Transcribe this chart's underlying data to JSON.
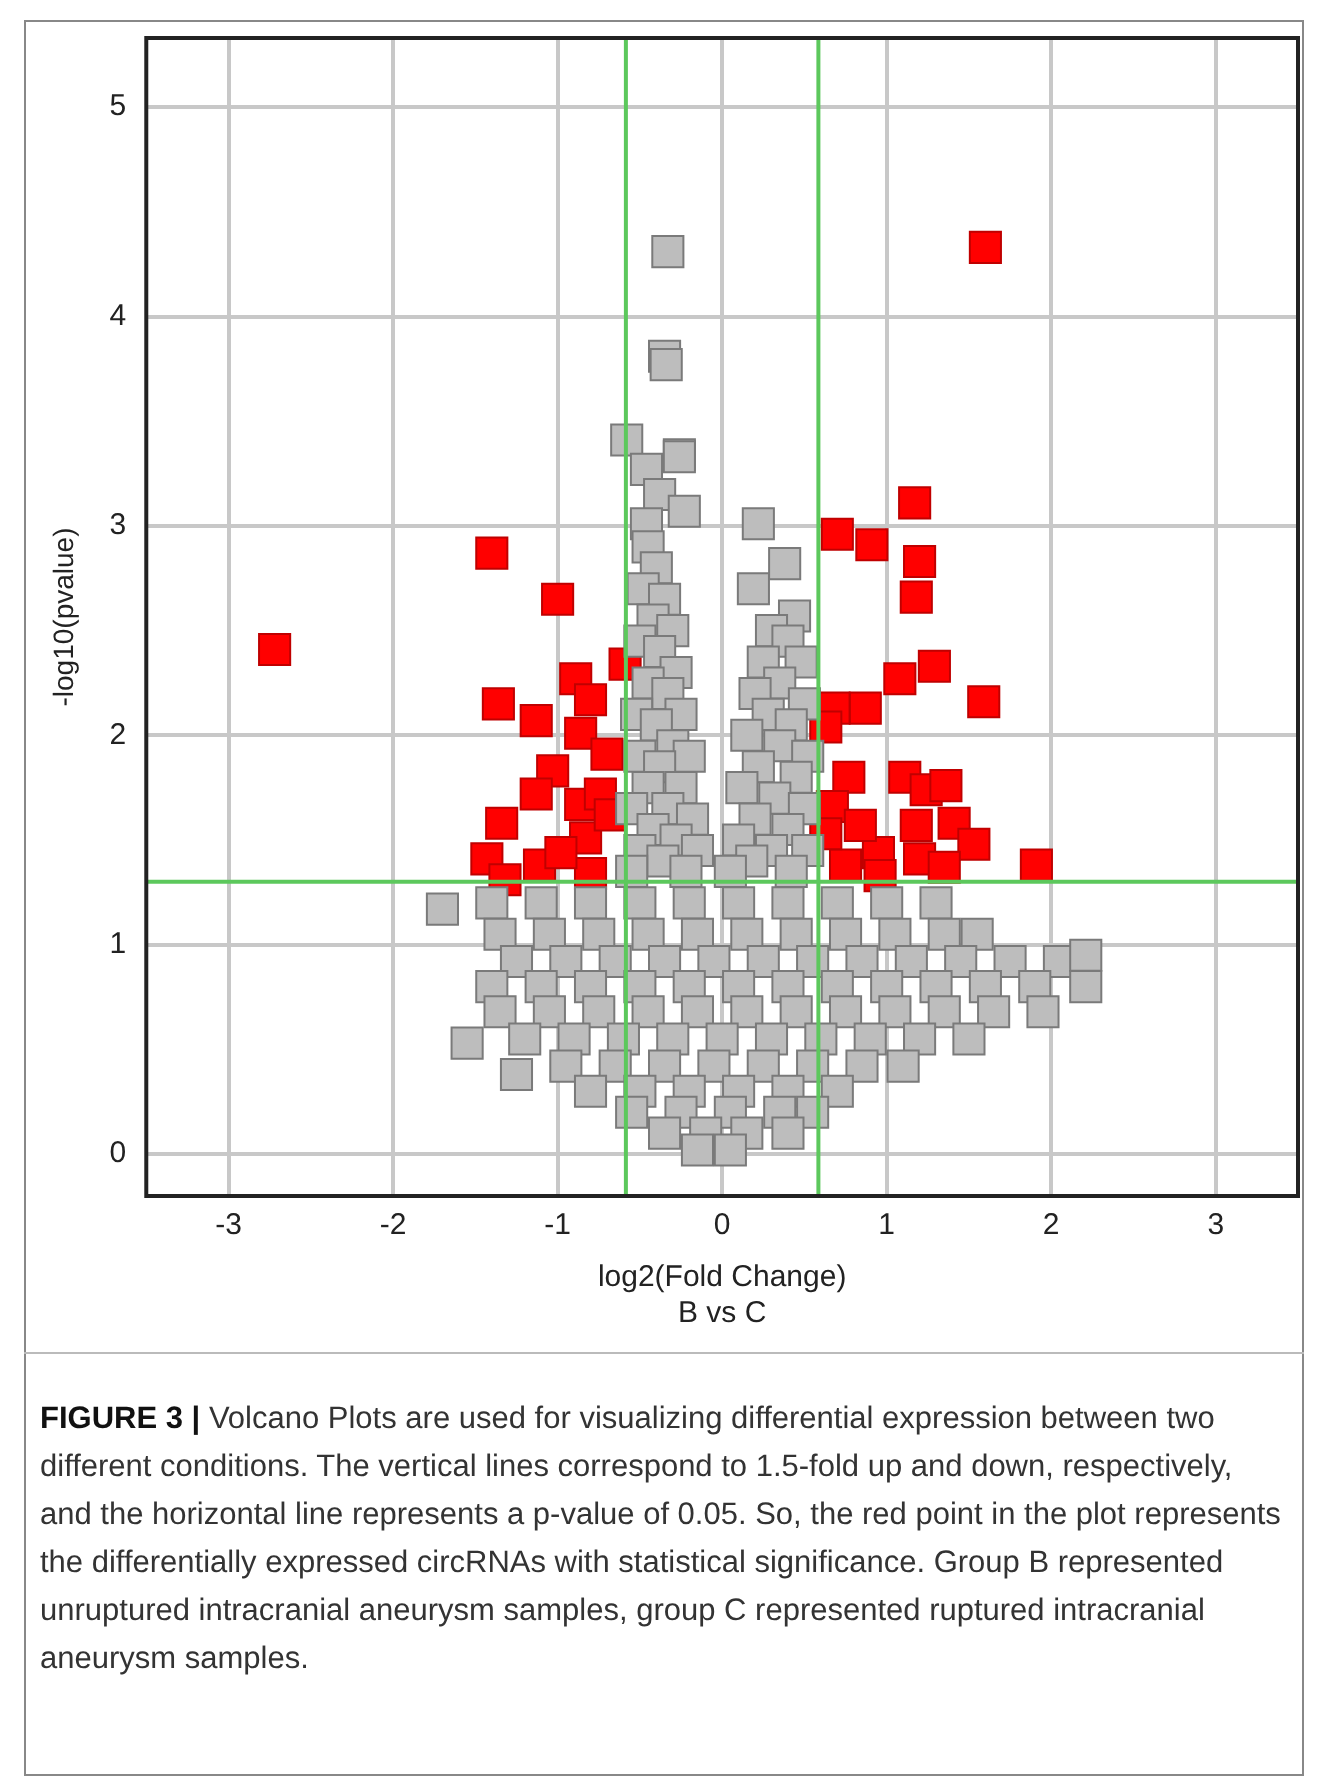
{
  "chart_data": {
    "type": "scatter",
    "xlabel": "log2(Fold Change)\nB vs C",
    "ylabel": "-log10(pvalue)",
    "xlim": [
      -3.5,
      3.5
    ],
    "xticks": [
      -3,
      -2,
      -1,
      0,
      1,
      2,
      3
    ],
    "ylim": [
      -0.2,
      5.33
    ],
    "yticks": [
      0,
      1,
      2,
      3,
      4,
      5
    ],
    "grid": true,
    "marker": "square",
    "ref_lines": [
      {
        "axis": "x",
        "value": -0.585,
        "color": "#5cc85c"
      },
      {
        "axis": "x",
        "value": 0.585,
        "color": "#5cc85c"
      },
      {
        "axis": "y",
        "value": 1.301,
        "color": "#5cc85c"
      }
    ],
    "series": [
      {
        "color": "#bdbdbd",
        "x": [
          -0.33,
          -0.35,
          -0.34,
          -0.58,
          -0.46,
          -0.26,
          -0.38,
          -0.46,
          0.22,
          0.38,
          0.19,
          0.44,
          -0.26,
          -0.23,
          -0.45,
          -0.4,
          -0.48,
          -0.35,
          -0.42,
          -0.3,
          -0.5,
          -0.38,
          -0.28,
          -0.45,
          -0.33,
          -0.52,
          -0.25,
          -0.4,
          -0.3,
          -0.5,
          -0.2,
          -0.38,
          -0.45,
          -0.25,
          -0.55,
          -0.33,
          -0.18,
          -0.42,
          -0.28,
          -0.5,
          -0.15,
          -0.36,
          -0.22,
          -0.55,
          0.3,
          0.4,
          0.25,
          0.48,
          0.35,
          0.2,
          0.5,
          0.28,
          0.42,
          0.15,
          0.35,
          0.52,
          0.22,
          0.45,
          0.12,
          0.32,
          0.5,
          0.2,
          0.4,
          0.1,
          0.3,
          0.52,
          0.18,
          0.42,
          0.05,
          -1.7,
          -1.4,
          -1.1,
          -0.8,
          -0.5,
          -0.2,
          0.1,
          0.4,
          0.7,
          1.0,
          1.3,
          -1.35,
          -1.05,
          -0.75,
          -0.45,
          -0.15,
          0.15,
          0.45,
          0.75,
          1.05,
          1.35,
          1.55,
          -1.25,
          -0.95,
          -0.65,
          -0.35,
          -0.05,
          0.25,
          0.55,
          0.85,
          1.15,
          1.45,
          1.75,
          2.05,
          2.21,
          -1.4,
          -1.1,
          -0.8,
          -0.5,
          -0.2,
          0.1,
          0.4,
          0.7,
          1.0,
          1.3,
          1.6,
          1.9,
          2.21,
          -1.35,
          -1.05,
          -0.75,
          -0.45,
          -0.15,
          0.15,
          0.45,
          0.75,
          1.05,
          1.35,
          1.65,
          1.95,
          -1.55,
          -1.2,
          -0.9,
          -0.6,
          -0.3,
          0.0,
          0.3,
          0.6,
          0.9,
          1.2,
          1.5,
          -1.25,
          -0.95,
          -0.65,
          -0.35,
          -0.05,
          0.25,
          0.55,
          0.85,
          1.1,
          -0.8,
          -0.5,
          -0.2,
          0.1,
          0.4,
          0.7,
          -0.55,
          -0.25,
          0.05,
          0.35,
          0.55,
          -0.35,
          -0.1,
          0.15,
          0.4,
          -0.15,
          0.05
        ],
        "values": [
          4.31,
          3.81,
          3.77,
          3.41,
          3.27,
          3.34,
          3.15,
          3.01,
          3.01,
          2.82,
          2.7,
          2.57,
          3.33,
          3.07,
          2.9,
          2.8,
          2.7,
          2.65,
          2.55,
          2.5,
          2.45,
          2.4,
          2.3,
          2.25,
          2.2,
          2.1,
          2.1,
          2.05,
          1.95,
          1.9,
          1.9,
          1.85,
          1.75,
          1.75,
          1.65,
          1.65,
          1.6,
          1.55,
          1.5,
          1.45,
          1.45,
          1.4,
          1.35,
          1.35,
          2.5,
          2.45,
          2.35,
          2.35,
          2.25,
          2.2,
          2.15,
          2.1,
          2.05,
          2.0,
          1.95,
          1.9,
          1.85,
          1.8,
          1.75,
          1.7,
          1.65,
          1.6,
          1.55,
          1.5,
          1.45,
          1.45,
          1.4,
          1.35,
          1.35,
          1.17,
          1.2,
          1.2,
          1.2,
          1.2,
          1.2,
          1.2,
          1.2,
          1.2,
          1.2,
          1.2,
          1.05,
          1.05,
          1.05,
          1.05,
          1.05,
          1.05,
          1.05,
          1.05,
          1.05,
          1.05,
          1.05,
          0.92,
          0.92,
          0.92,
          0.92,
          0.92,
          0.92,
          0.92,
          0.92,
          0.92,
          0.92,
          0.92,
          0.92,
          0.95,
          0.8,
          0.8,
          0.8,
          0.8,
          0.8,
          0.8,
          0.8,
          0.8,
          0.8,
          0.8,
          0.8,
          0.8,
          0.8,
          0.68,
          0.68,
          0.68,
          0.68,
          0.68,
          0.68,
          0.68,
          0.68,
          0.68,
          0.68,
          0.68,
          0.68,
          0.53,
          0.55,
          0.55,
          0.55,
          0.55,
          0.55,
          0.55,
          0.55,
          0.55,
          0.55,
          0.55,
          0.38,
          0.42,
          0.42,
          0.42,
          0.42,
          0.42,
          0.42,
          0.42,
          0.42,
          0.3,
          0.3,
          0.3,
          0.3,
          0.3,
          0.3,
          0.2,
          0.2,
          0.2,
          0.2,
          0.2,
          0.1,
          0.1,
          0.1,
          0.1,
          0.02,
          0.02
        ]
      },
      {
        "color": "#ff0000",
        "x": [
          -2.72,
          -1.4,
          -1.0,
          1.6,
          1.17,
          0.7,
          0.91,
          1.2,
          1.18,
          1.29,
          1.08,
          1.59,
          0.87,
          0.68,
          0.63,
          0.77,
          1.11,
          1.24,
          1.36,
          0.67,
          1.18,
          1.41,
          1.53,
          0.95,
          1.2,
          1.91,
          1.35,
          0.96,
          0.75,
          0.63,
          0.84,
          -1.36,
          -1.13,
          -0.89,
          -0.8,
          -0.86,
          -0.59,
          -0.7,
          -1.03,
          -1.13,
          -0.86,
          -0.74,
          -1.34,
          -0.83,
          -0.68,
          -1.43,
          -1.11,
          -1.32,
          -0.8,
          -0.98
        ],
        "values": [
          2.41,
          2.87,
          2.65,
          4.33,
          3.11,
          2.96,
          2.91,
          2.83,
          2.66,
          2.33,
          2.27,
          2.16,
          2.13,
          2.13,
          2.04,
          1.8,
          1.8,
          1.74,
          1.76,
          1.66,
          1.57,
          1.58,
          1.48,
          1.44,
          1.41,
          1.38,
          1.37,
          1.33,
          1.38,
          1.53,
          1.57,
          2.15,
          2.07,
          2.27,
          2.17,
          2.01,
          2.34,
          1.91,
          1.83,
          1.72,
          1.67,
          1.72,
          1.58,
          1.51,
          1.62,
          1.41,
          1.38,
          1.31,
          1.34,
          1.44
        ]
      }
    ],
    "annotations": [
      "FIGURE 3 |",
      "Volcano Plots are used for visualizing differential expression between two different conditions. The vertical lines correspond to 1.5-fold up and down, respectively, and the horizontal line represents a p-value of 0.05. So, the red point in the plot represents the differentially expressed circRNAs with statistical significance. Group B represented unruptured intracranial aneurysm samples, group C represented ruptured intracranial aneurysm samples."
    ]
  }
}
